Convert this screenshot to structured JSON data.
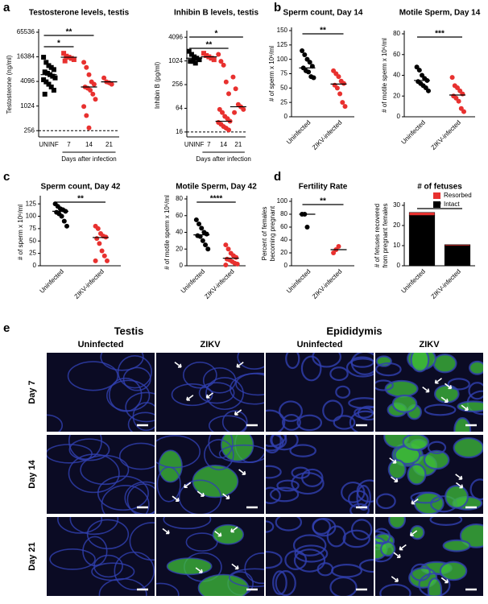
{
  "panel_labels": [
    "a",
    "b",
    "c",
    "d",
    "e"
  ],
  "chart_data": [
    {
      "type": "dot",
      "title": "Testosterone levels, testis",
      "ylabel": "Testosterone (ng/ml)",
      "xlabel": "Days after infection",
      "categories": [
        "UNINF",
        "7",
        "14",
        "21"
      ],
      "points": [
        [
          16000,
          12000,
          10000,
          9000,
          8000,
          7000,
          6500,
          6000,
          5500,
          5000,
          4500,
          4000,
          3500,
          3000,
          2500,
          2000
        ],
        [
          20000,
          17000,
          16000,
          15000,
          14000,
          13000
        ],
        [
          12000,
          9000,
          6000,
          4000,
          3500,
          3000,
          2800,
          2500,
          2000,
          1500,
          1000,
          600,
          300
        ],
        [
          5000,
          4000,
          3800,
          3500
        ]
      ],
      "medians": [
        6000,
        16000,
        3000,
        4000
      ],
      "colors": [
        "#000000",
        "#e8312f",
        "#e8312f",
        "#e8312f"
      ],
      "markers": [
        "square",
        "square",
        "circle",
        "circle"
      ],
      "log": true,
      "ylim": [
        180,
        65536
      ],
      "yticks": [
        256,
        1024,
        4096,
        16384,
        65536
      ],
      "reference_line": 256,
      "annotations": [
        {
          "text": "**",
          "between": [
            "UNINF",
            "14"
          ]
        },
        {
          "text": "*",
          "between": [
            "UNINF",
            "7"
          ]
        }
      ]
    },
    {
      "type": "dot",
      "title": "Inhibin B levels, testis",
      "ylabel": "Inhibin B (pg/ml)",
      "xlabel": "Days after infection",
      "categories": [
        "UNINF",
        "7",
        "14",
        "21"
      ],
      "points": [
        [
          1800,
          1500,
          1300,
          1200,
          1100,
          1000,
          1000,
          900
        ],
        [
          1600,
          1400,
          1300,
          1200,
          1100
        ],
        [
          1500,
          1000,
          800,
          300,
          150,
          60,
          50,
          40,
          35,
          30,
          28,
          25,
          22,
          20,
          18
        ],
        [
          400,
          200,
          80,
          70,
          60,
          50
        ]
      ],
      "medians": [
        1200,
        1300,
        30,
        70
      ],
      "colors": [
        "#000000",
        "#e8312f",
        "#e8312f",
        "#e8312f"
      ],
      "markers": [
        "square",
        "square",
        "circle",
        "circle"
      ],
      "log": true,
      "ylim": [
        12,
        5000
      ],
      "yticks": [
        16,
        64,
        256,
        1024,
        4096
      ],
      "reference_line": 16,
      "annotations": [
        {
          "text": "*",
          "between": [
            "UNINF",
            "21"
          ]
        },
        {
          "text": "**",
          "between": [
            "UNINF",
            "14"
          ]
        }
      ]
    },
    {
      "type": "dot",
      "title": "Sperm count, Day 14",
      "ylabel": "# of sperm x 10⁶/ml",
      "categories": [
        "Uninfected",
        "ZIKV-infected"
      ],
      "points": [
        [
          115,
          108,
          100,
          95,
          88,
          85,
          80,
          78,
          70,
          68
        ],
        [
          80,
          75,
          70,
          62,
          58,
          55,
          50,
          40,
          25,
          18
        ]
      ],
      "medians": [
        85,
        57
      ],
      "colors": [
        "#000000",
        "#e8312f"
      ],
      "ylim": [
        0,
        150
      ],
      "yticks": [
        0,
        25,
        50,
        75,
        100,
        125,
        150
      ],
      "annotations": [
        {
          "text": "**",
          "between": [
            "Uninfected",
            "ZIKV-infected"
          ]
        }
      ]
    },
    {
      "type": "dot",
      "title": "Motile Sperm, Day 14",
      "ylabel": "# of motile sperm x 10⁶/ml",
      "categories": [
        "Uninfected",
        "ZIKV-infected"
      ],
      "points": [
        [
          48,
          45,
          40,
          37,
          35,
          34,
          32,
          30,
          28,
          25
        ],
        [
          38,
          30,
          28,
          25,
          22,
          20,
          18,
          15,
          8,
          5
        ]
      ],
      "medians": [
        35,
        21
      ],
      "colors": [
        "#000000",
        "#e8312f"
      ],
      "ylim": [
        0,
        80
      ],
      "yticks": [
        0,
        20,
        40,
        60,
        80
      ],
      "annotations": [
        {
          "text": "***",
          "between": [
            "Uninfected",
            "ZIKV-infected"
          ]
        }
      ]
    },
    {
      "type": "dot",
      "title": "Sperm count, Day 42",
      "ylabel": "# of sperm x 10⁶/ml",
      "categories": [
        "Uninfected",
        "ZIKV-infected"
      ],
      "points": [
        [
          125,
          120,
          115,
          113,
          110,
          108,
          105,
          100,
          90,
          80
        ],
        [
          80,
          75,
          65,
          60,
          58,
          55,
          45,
          30,
          20,
          10,
          10
        ]
      ],
      "medians": [
        110,
        57
      ],
      "colors": [
        "#000000",
        "#e8312f"
      ],
      "ylim": [
        0,
        135
      ],
      "yticks": [
        0,
        25,
        50,
        75,
        100,
        125
      ],
      "annotations": [
        {
          "text": "**",
          "between": [
            "Uninfected",
            "ZIKV-infected"
          ]
        }
      ]
    },
    {
      "type": "dot",
      "title": "Motile Sperm, Day 42",
      "ylabel": "# of motile sperm x 10⁶/ml",
      "categories": [
        "Uninfected",
        "ZIKV-infected"
      ],
      "points": [
        [
          55,
          50,
          45,
          40,
          38,
          36,
          35,
          30,
          25,
          20
        ],
        [
          25,
          20,
          15,
          12,
          10,
          8,
          7,
          5,
          3,
          2,
          1
        ]
      ],
      "medians": [
        37,
        9
      ],
      "colors": [
        "#000000",
        "#e8312f"
      ],
      "ylim": [
        0,
        80
      ],
      "yticks": [
        0,
        20,
        40,
        60,
        80
      ],
      "annotations": [
        {
          "text": "****",
          "between": [
            "Uninfected",
            "ZIKV-infected"
          ]
        }
      ]
    },
    {
      "type": "dot",
      "title": "Fertility Rate",
      "ylabel": [
        "Percent of females",
        "becoming pregnant"
      ],
      "categories": [
        "Uninfected",
        "ZIKV-infected"
      ],
      "points": [
        [
          80,
          80,
          60
        ],
        [
          20,
          25,
          30
        ]
      ],
      "medians": [
        80,
        25
      ],
      "colors": [
        "#000000",
        "#e8312f"
      ],
      "ylim": [
        0,
        100
      ],
      "yticks": [
        0,
        20,
        40,
        60,
        80,
        100
      ],
      "annotations": [
        {
          "text": "**",
          "between": [
            "Uninfected",
            "ZIKV-infected"
          ]
        }
      ]
    },
    {
      "type": "stacked_bar",
      "title": "# of fetuses",
      "ylabel": [
        "# of fetuses recovered",
        "from pregnant females"
      ],
      "categories": [
        "Uninfected",
        "ZIKV-infected"
      ],
      "series": [
        {
          "name": "Intact",
          "color": "#000000",
          "values": [
            25,
            10
          ]
        },
        {
          "name": "Resorbed",
          "color": "#e8312f",
          "values": [
            1.5,
            0.5
          ]
        }
      ],
      "ylim": [
        0,
        30
      ],
      "yticks": [
        0,
        10,
        20,
        30
      ],
      "legend": "upper right",
      "annotations": [
        {
          "text": "*",
          "between": [
            "Uninfected",
            "ZIKV-infected"
          ]
        }
      ]
    }
  ],
  "panel_e": {
    "groups": [
      "Testis",
      "Epididymis"
    ],
    "columns": [
      "Uninfected",
      "ZIKV",
      "Uninfected",
      "ZIKV"
    ],
    "rows": [
      "Day 7",
      "Day 14",
      "Day 21"
    ]
  }
}
